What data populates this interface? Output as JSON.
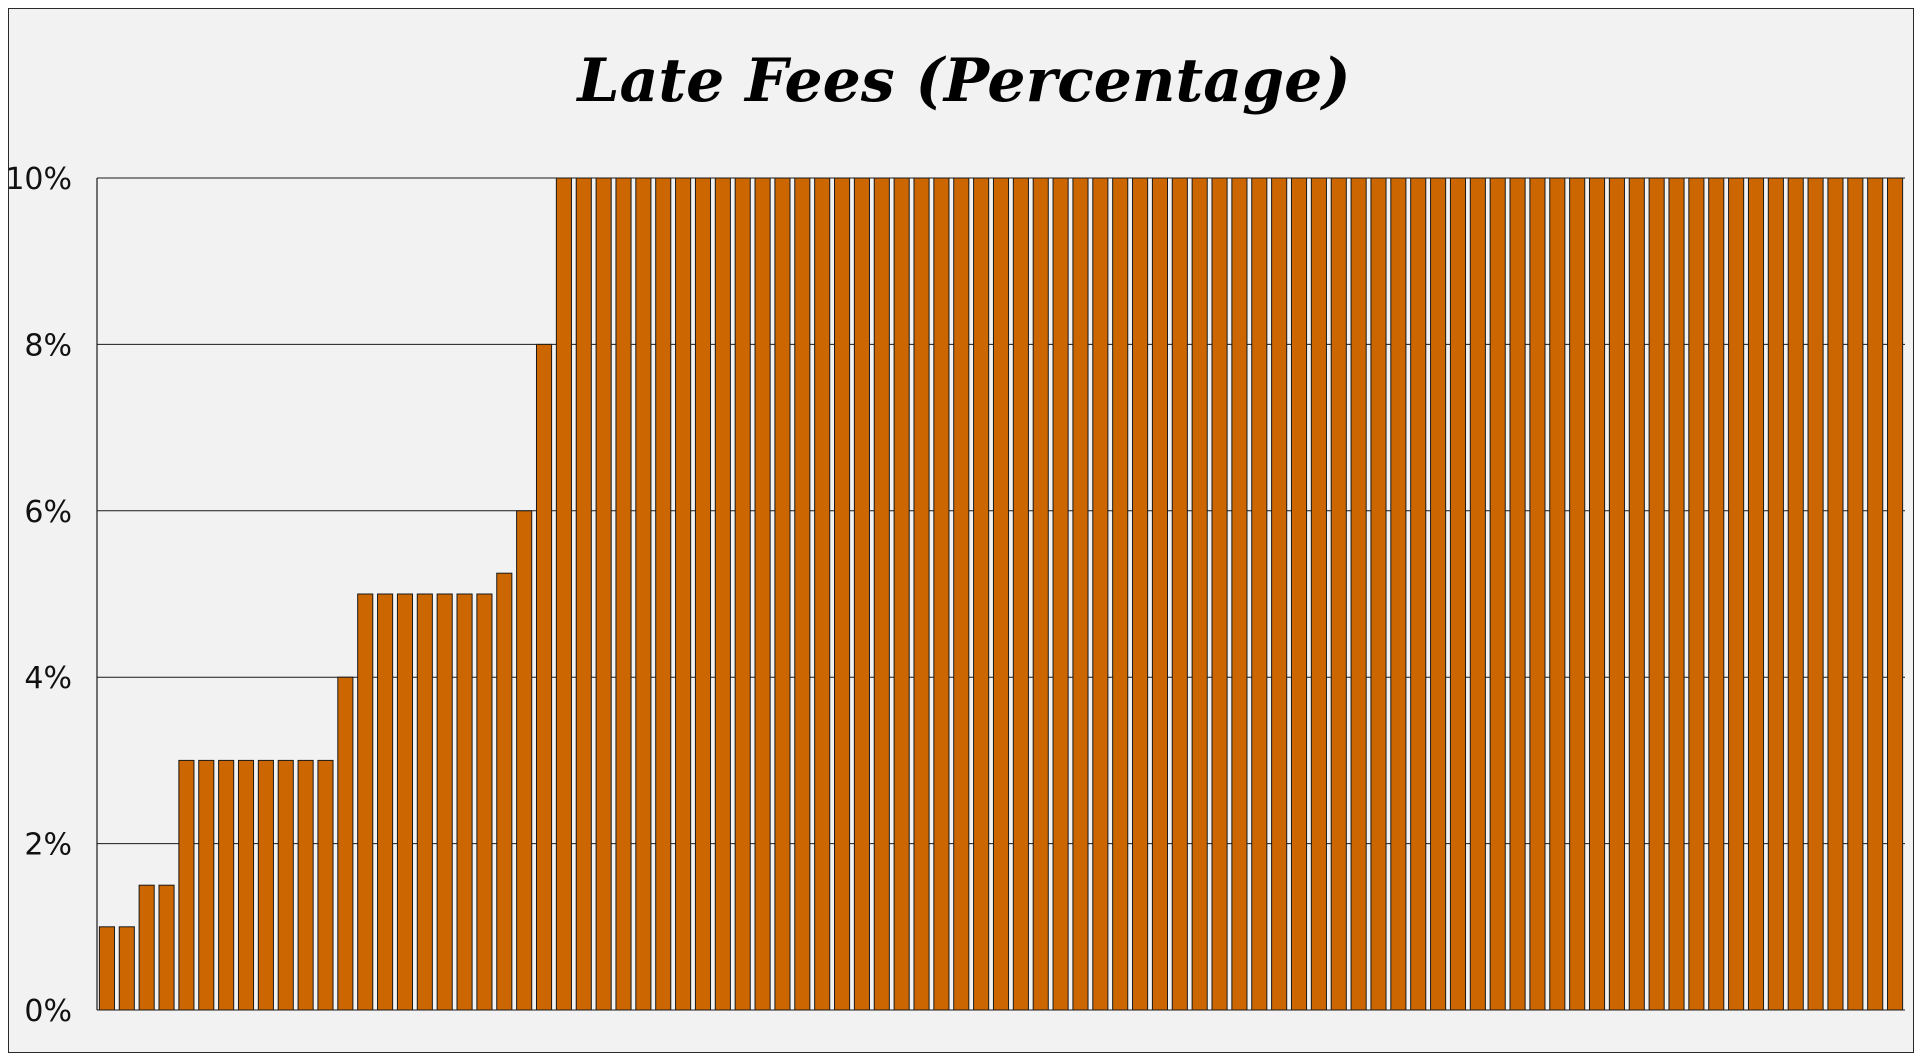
{
  "chart_data": {
    "type": "bar",
    "title": "Late Fees (Percentage)",
    "xlabel": "",
    "ylabel": "",
    "ylim": [
      0,
      10
    ],
    "y_ticks": [
      0,
      2,
      4,
      6,
      8,
      10
    ],
    "y_tick_labels": [
      "0%",
      "2%",
      "4%",
      "6%",
      "8%",
      "10%"
    ],
    "grid": true,
    "bar_color": "#cc6600",
    "bar_edge_color": "#1a1a1a",
    "values": [
      1,
      1,
      1.5,
      1.5,
      3,
      3,
      3,
      3,
      3,
      3,
      3,
      3,
      4,
      5,
      5,
      5,
      5,
      5,
      5,
      5,
      5.25,
      6,
      8,
      10,
      10,
      10,
      10,
      10,
      10,
      10,
      10,
      10,
      10,
      10,
      10,
      10,
      10,
      10,
      10,
      10,
      10,
      10,
      10,
      10,
      10,
      10,
      10,
      10,
      10,
      10,
      10,
      10,
      10,
      10,
      10,
      10,
      10,
      10,
      10,
      10,
      10,
      10,
      10,
      10,
      10,
      10,
      10,
      10,
      10,
      10,
      10,
      10,
      10,
      10,
      10,
      10,
      10,
      10,
      10,
      10,
      10,
      10,
      10,
      10,
      10,
      10,
      10,
      10,
      10,
      10,
      10
    ]
  }
}
